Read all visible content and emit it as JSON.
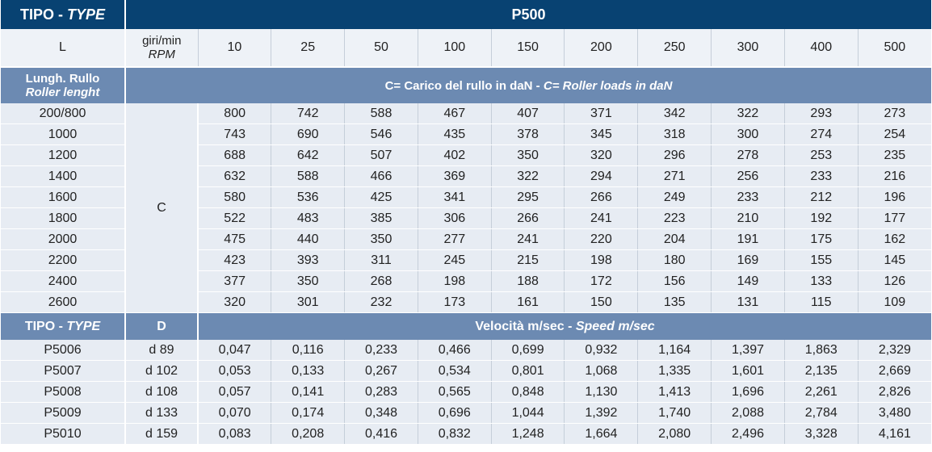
{
  "header": {
    "type_label": "TIPO - ",
    "type_label_en": "TYPE",
    "model": "P500"
  },
  "rpm_row": {
    "length_label": "L",
    "rpm_label_it": "giri/min",
    "rpm_label_en": "RPM",
    "rpm_values": [
      "10",
      "25",
      "50",
      "100",
      "150",
      "200",
      "250",
      "300",
      "400",
      "500"
    ]
  },
  "load_section": {
    "length_label_it": "Lungh. Rullo",
    "length_label_en": "Roller lenght",
    "caption_it": "C= Carico del rullo in daN - ",
    "caption_en": "C= Roller loads in daN",
    "c_label": "C",
    "rows": [
      {
        "length": "200/800",
        "values": [
          "800",
          "742",
          "588",
          "467",
          "407",
          "371",
          "342",
          "322",
          "293",
          "273"
        ]
      },
      {
        "length": "1000",
        "values": [
          "743",
          "690",
          "546",
          "435",
          "378",
          "345",
          "318",
          "300",
          "274",
          "254"
        ]
      },
      {
        "length": "1200",
        "values": [
          "688",
          "642",
          "507",
          "402",
          "350",
          "320",
          "296",
          "278",
          "253",
          "235"
        ]
      },
      {
        "length": "1400",
        "values": [
          "632",
          "588",
          "466",
          "369",
          "322",
          "294",
          "271",
          "256",
          "233",
          "216"
        ]
      },
      {
        "length": "1600",
        "values": [
          "580",
          "536",
          "425",
          "341",
          "295",
          "266",
          "249",
          "233",
          "212",
          "196"
        ]
      },
      {
        "length": "1800",
        "values": [
          "522",
          "483",
          "385",
          "306",
          "266",
          "241",
          "223",
          "210",
          "192",
          "177"
        ]
      },
      {
        "length": "2000",
        "values": [
          "475",
          "440",
          "350",
          "277",
          "241",
          "220",
          "204",
          "191",
          "175",
          "162"
        ]
      },
      {
        "length": "2200",
        "values": [
          "423",
          "393",
          "311",
          "245",
          "215",
          "198",
          "180",
          "169",
          "155",
          "145"
        ]
      },
      {
        "length": "2400",
        "values": [
          "377",
          "350",
          "268",
          "198",
          "188",
          "172",
          "156",
          "149",
          "133",
          "126"
        ]
      },
      {
        "length": "2600",
        "values": [
          "320",
          "301",
          "232",
          "173",
          "161",
          "150",
          "135",
          "131",
          "115",
          "109"
        ]
      }
    ]
  },
  "speed_section": {
    "type_label": "TIPO - ",
    "type_label_en": "TYPE",
    "diameter_label": "D",
    "caption_it": "Velocità m/sec - ",
    "caption_en": "Speed m/sec",
    "rows": [
      {
        "type": "P5006",
        "diameter": "d 89",
        "values": [
          "0,047",
          "0,116",
          "0,233",
          "0,466",
          "0,699",
          "0,932",
          "1,164",
          "1,397",
          "1,863",
          "2,329"
        ]
      },
      {
        "type": "P5007",
        "diameter": "d 102",
        "values": [
          "0,053",
          "0,133",
          "0,267",
          "0,534",
          "0,801",
          "1,068",
          "1,335",
          "1,601",
          "2,135",
          "2,669"
        ]
      },
      {
        "type": "P5008",
        "diameter": "d 108",
        "values": [
          "0,057",
          "0,141",
          "0,283",
          "0,565",
          "0,848",
          "1,130",
          "1,413",
          "1,696",
          "2,261",
          "2,826"
        ]
      },
      {
        "type": "P5009",
        "diameter": "d 133",
        "values": [
          "0,070",
          "0,174",
          "0,348",
          "0,696",
          "1,044",
          "1,392",
          "1,740",
          "2,088",
          "2,784",
          "3,480"
        ]
      },
      {
        "type": "P5010",
        "diameter": "d 159",
        "values": [
          "0,083",
          "0,208",
          "0,416",
          "0,832",
          "1,248",
          "1,664",
          "2,080",
          "2,496",
          "3,328",
          "4,161"
        ]
      }
    ]
  },
  "colors": {
    "header_dark_blue": "#084272",
    "band_blue": "#6c8ab2",
    "row_light": "#e7ecf3"
  }
}
